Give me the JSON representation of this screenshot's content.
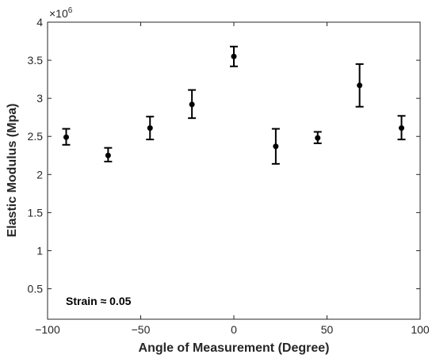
{
  "chart_data": {
    "type": "scatter",
    "title": "",
    "xlabel": "Angle of Measurement (Degree)",
    "ylabel": "Elastic Modulus (Mpa)",
    "exponent_label": "×10^6",
    "exponent_base": "×10",
    "exponent_power": "6",
    "xlim": [
      -100,
      100
    ],
    "ylim": [
      0.1,
      4
    ],
    "xticks": [
      -100,
      -50,
      0,
      50,
      100
    ],
    "xtick_labels": [
      "−100",
      "−50",
      "0",
      "50",
      "100"
    ],
    "yticks": [
      0.5,
      1,
      1.5,
      2,
      2.5,
      3,
      3.5,
      4
    ],
    "ytick_labels": [
      "0.5",
      "1",
      "1.5",
      "2",
      "2.5",
      "3",
      "3.5",
      "4"
    ],
    "grid": false,
    "series": [
      {
        "x": [
          -90,
          -67.5,
          -45,
          -22.5,
          0,
          22.5,
          45,
          67.5,
          90
        ],
        "y": [
          2.49,
          2.25,
          2.61,
          2.92,
          3.55,
          2.37,
          2.48,
          3.17,
          2.61
        ],
        "err_low": [
          0.1,
          0.08,
          0.15,
          0.18,
          0.13,
          0.23,
          0.07,
          0.28,
          0.15
        ],
        "err_high": [
          0.11,
          0.1,
          0.15,
          0.19,
          0.13,
          0.23,
          0.08,
          0.28,
          0.16
        ],
        "color": "#000000"
      }
    ],
    "annotation": "Strain ≈ 0.05"
  }
}
